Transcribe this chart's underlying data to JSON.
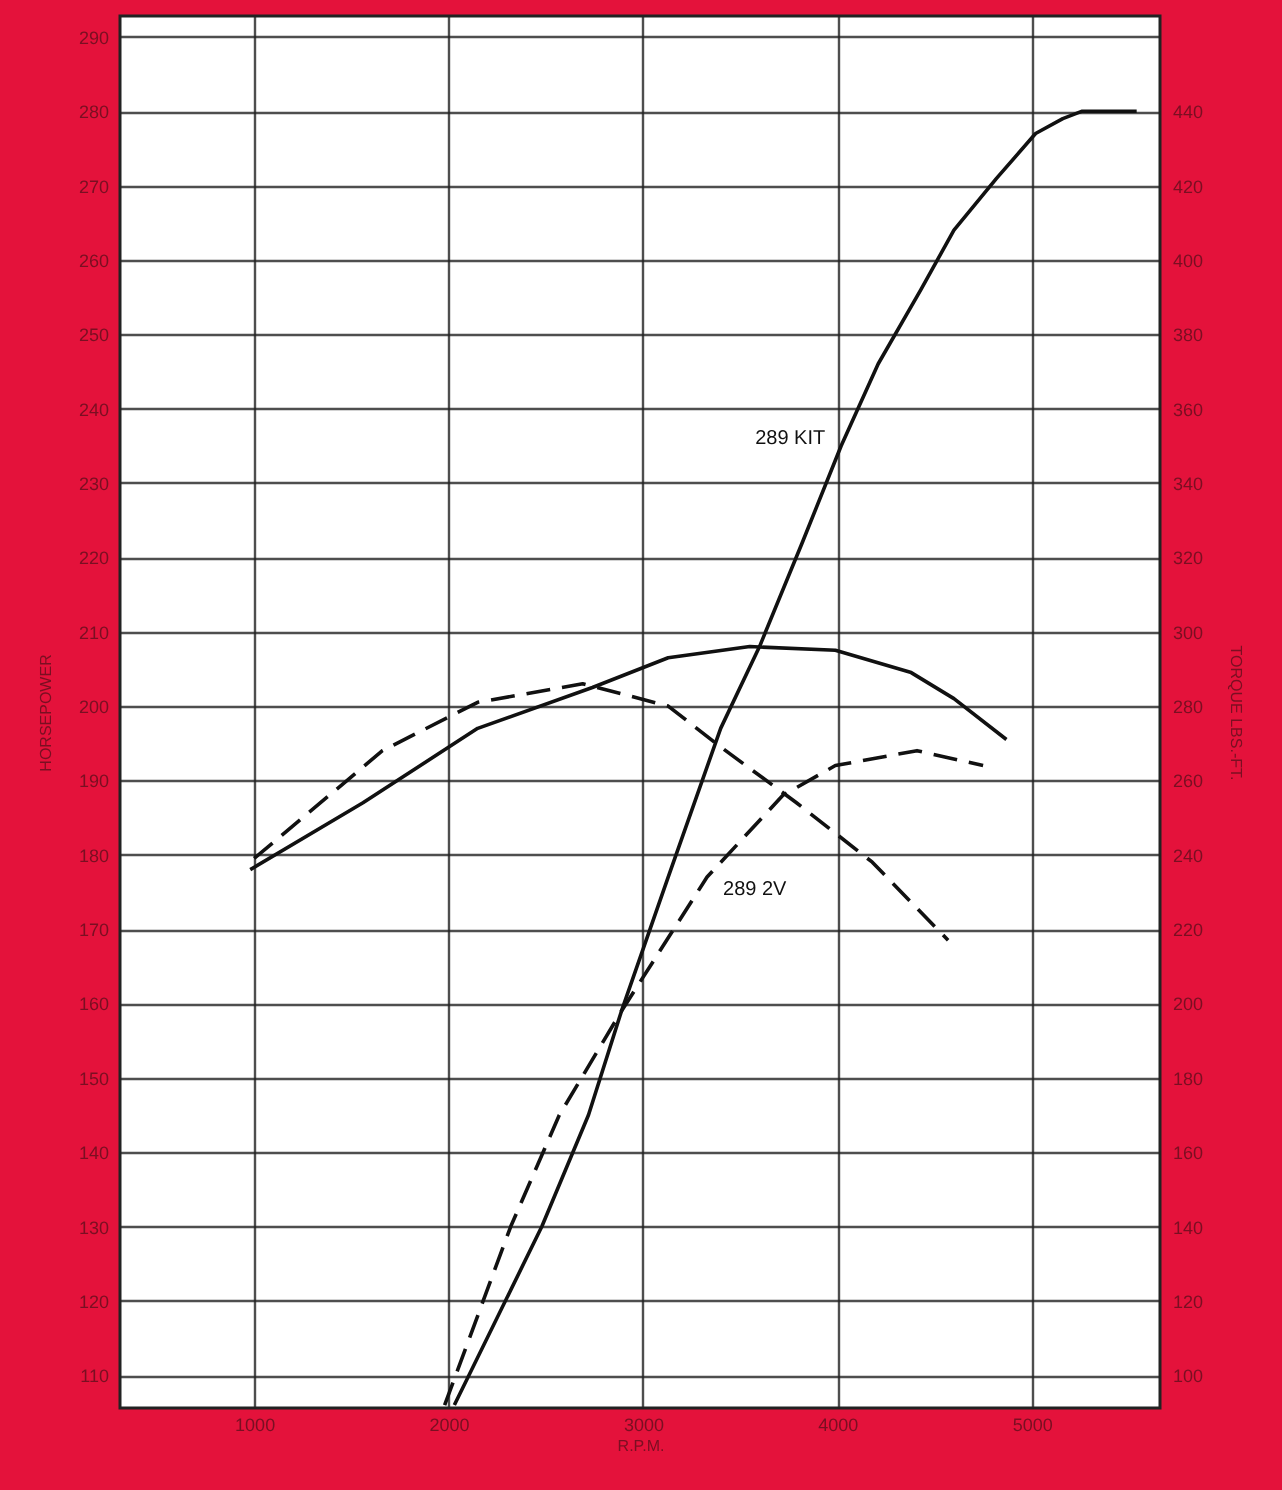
{
  "chart_data": {
    "type": "line",
    "xlabel": "R.P.M.",
    "ylabel": "HORSEPOWER",
    "y2label": "TORQUE  LBS.-FT.",
    "xlim": [
      310,
      5660
    ],
    "xticks": [
      1000,
      2000,
      3000,
      4000,
      5000
    ],
    "ylim": [
      105.6,
      292.8
    ],
    "yticks": [
      110,
      120,
      130,
      140,
      150,
      160,
      170,
      180,
      190,
      200,
      210,
      220,
      230,
      240,
      250,
      260,
      270,
      280,
      290
    ],
    "y2lim": [
      91.2,
      465.6
    ],
    "y2ticks": [
      100,
      120,
      140,
      160,
      180,
      200,
      220,
      240,
      260,
      280,
      300,
      320,
      340,
      360,
      380,
      400,
      420,
      440
    ],
    "grid": true,
    "marker": "none",
    "series": [
      {
        "name": "289 KIT",
        "color": "#111111",
        "line_style": "solid",
        "x": [
          2030,
          2480,
          2720,
          2890,
          3130,
          3400,
          3600,
          3820,
          4020,
          4210,
          4430,
          4600,
          4820,
          5020,
          5160,
          5260,
          5420,
          5540
        ],
        "values": [
          106,
          130,
          145,
          159,
          177,
          197,
          208,
          222,
          235,
          246,
          256,
          264,
          271,
          277,
          279,
          280,
          280,
          280
        ]
      },
      {
        "name": "289 2V",
        "color": "#111111",
        "line_style": "dashed",
        "x": [
          1980,
          2320,
          2570,
          2890,
          3330,
          3720,
          3990,
          4410,
          4750
        ],
        "values": [
          106,
          130,
          145,
          159,
          177,
          188,
          192,
          194,
          192
        ]
      },
      {
        "color": "#111111",
        "line_style": "solid",
        "axis": "y2",
        "x": [
          980,
          1560,
          2150,
          2740,
          3130,
          3550,
          3990,
          4380,
          4600,
          4870
        ],
        "values": [
          236,
          254,
          274,
          285,
          293,
          296,
          295,
          289,
          282,
          271
        ]
      },
      {
        "color": "#111111",
        "line_style": "dashed",
        "axis": "y2",
        "x": [
          1000,
          1660,
          2150,
          2690,
          3130,
          3400,
          3790,
          4180,
          4570
        ],
        "values": [
          239,
          268,
          281,
          286,
          280,
          269,
          254,
          238,
          217
        ]
      }
    ]
  }
}
